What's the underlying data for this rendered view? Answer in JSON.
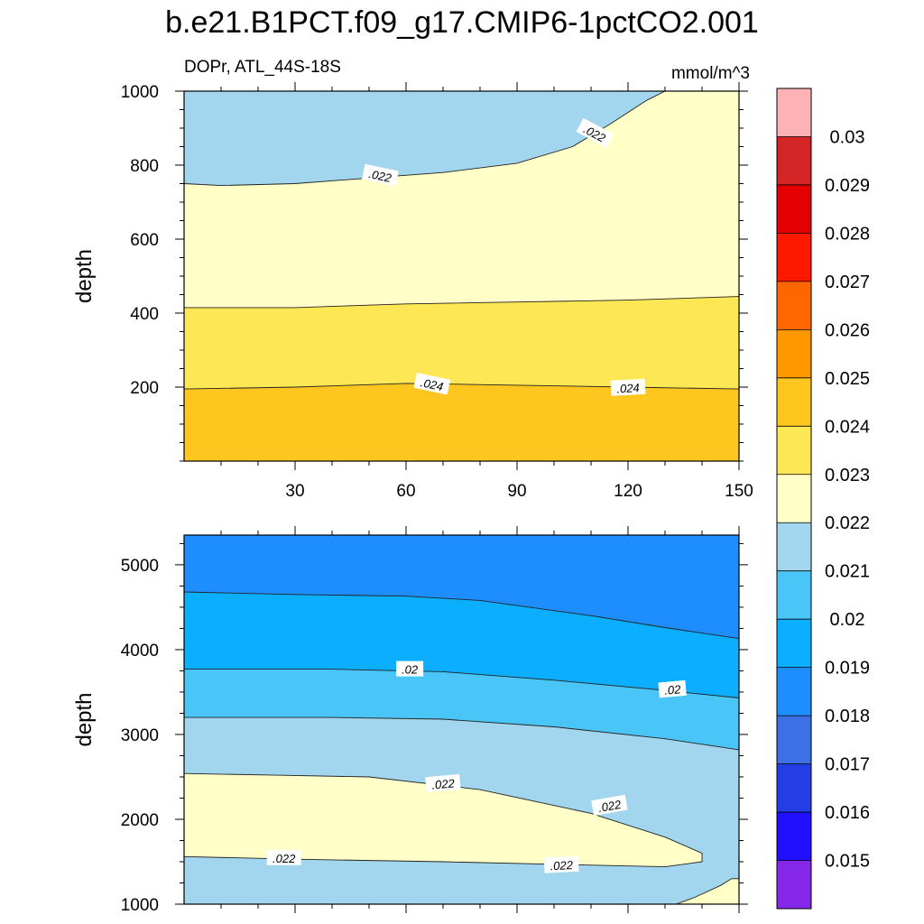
{
  "figure": {
    "title": "b.e21.B1PCT.f09_g17.CMIP6-1pctCO2.001",
    "variable_region": "DOPr, ATL_44S-18S",
    "units": "mmol/m^3"
  },
  "chart_data": [
    {
      "type": "contour",
      "panel": "upper",
      "ylabel": "depth",
      "xlabel": "",
      "xlim": [
        0,
        150
      ],
      "ylim": [
        1000,
        0
      ],
      "x_ticks": [
        30,
        60,
        90,
        120,
        150
      ],
      "y_ticks": [
        200,
        400,
        600,
        800,
        1000
      ],
      "regions": [
        {
          "level": "0.024-0.025",
          "color": "#FEC61F",
          "boundary": [
            [
              0,
              0
            ],
            [
              150,
              0
            ],
            [
              150,
              195
            ],
            [
              120,
              200
            ],
            [
              90,
              205
            ],
            [
              60,
              210
            ],
            [
              30,
              200
            ],
            [
              0,
              195
            ]
          ]
        },
        {
          "level": "0.023-0.024",
          "color": "#FEE755",
          "boundary": [
            [
              0,
              195
            ],
            [
              30,
              200
            ],
            [
              60,
              210
            ],
            [
              90,
              205
            ],
            [
              120,
              200
            ],
            [
              150,
              195
            ],
            [
              150,
              445
            ],
            [
              120,
              435
            ],
            [
              90,
              430
            ],
            [
              60,
              425
            ],
            [
              30,
              415
            ],
            [
              0,
              415
            ]
          ]
        },
        {
          "level": "0.022-0.023",
          "color": "#FFFFC7",
          "boundary": [
            [
              0,
              415
            ],
            [
              30,
              415
            ],
            [
              60,
              425
            ],
            [
              90,
              430
            ],
            [
              120,
              435
            ],
            [
              150,
              445
            ],
            [
              150,
              1000
            ],
            [
              0,
              1000
            ]
          ]
        },
        {
          "level": "0.021-0.022",
          "color": "#A2D6EE",
          "boundary": [
            [
              0,
              750
            ],
            [
              10,
              745
            ],
            [
              30,
              750
            ],
            [
              50,
              765
            ],
            [
              70,
              780
            ],
            [
              90,
              805
            ],
            [
              105,
              850
            ],
            [
              115,
              910
            ],
            [
              125,
              975
            ],
            [
              130,
              1000
            ],
            [
              0,
              1000
            ]
          ]
        }
      ],
      "contour_lines": [
        {
          "value": 0.024,
          "points": [
            [
              0,
              195
            ],
            [
              30,
              200
            ],
            [
              60,
              210
            ],
            [
              90,
              205
            ],
            [
              120,
              200
            ],
            [
              150,
              195
            ]
          ]
        },
        {
          "value": 0.023,
          "points": [
            [
              0,
              415
            ],
            [
              30,
              415
            ],
            [
              60,
              425
            ],
            [
              90,
              430
            ],
            [
              120,
              435
            ],
            [
              150,
              445
            ]
          ]
        },
        {
          "value": 0.022,
          "points": [
            [
              0,
              750
            ],
            [
              10,
              745
            ],
            [
              30,
              750
            ],
            [
              50,
              765
            ],
            [
              70,
              780
            ],
            [
              90,
              805
            ],
            [
              105,
              850
            ],
            [
              115,
              910
            ],
            [
              125,
              975
            ],
            [
              130,
              1000
            ]
          ]
        }
      ],
      "contour_labels": [
        {
          "text": ".024",
          "x": 67,
          "y": 208,
          "angle": 12
        },
        {
          "text": ".024",
          "x": 120,
          "y": 198,
          "angle": -3
        },
        {
          "text": ".022",
          "x": 53,
          "y": 772,
          "angle": 12
        },
        {
          "text": ".022",
          "x": 111,
          "y": 886,
          "angle": 28
        }
      ]
    },
    {
      "type": "contour",
      "panel": "lower",
      "ylabel": "depth",
      "xlabel": "",
      "xlim": [
        0,
        150
      ],
      "ylim": [
        5350,
        1000
      ],
      "x_ticks": [
        30,
        60,
        90,
        120,
        150
      ],
      "y_ticks": [
        1000,
        2000,
        3000,
        4000,
        5000
      ],
      "regions": [
        {
          "level": "0.021-0.022",
          "color": "#A2D6EE",
          "boundary": [
            [
              0,
              1000
            ],
            [
              150,
              1000
            ],
            [
              150,
              5350
            ],
            [
              0,
              5350
            ]
          ]
        },
        {
          "level": "0.022-0.023 (lower-right)",
          "color": "#FFFFC7",
          "boundary": [
            [
              133,
              1000
            ],
            [
              150,
              1000
            ],
            [
              150,
              1300
            ],
            [
              148,
              1300
            ],
            [
              145,
              1220
            ],
            [
              138,
              1080
            ]
          ]
        },
        {
          "level": "0.022-0.023",
          "color": "#FFFFC7",
          "boundary": [
            [
              0,
              1560
            ],
            [
              30,
              1530
            ],
            [
              70,
              1500
            ],
            [
              100,
              1470
            ],
            [
              130,
              1440
            ],
            [
              140,
              1500
            ],
            [
              140,
              1600
            ],
            [
              130,
              1790
            ],
            [
              110,
              2070
            ],
            [
              80,
              2350
            ],
            [
              50,
              2500
            ],
            [
              25,
              2520
            ],
            [
              0,
              2540
            ]
          ]
        },
        {
          "level": "0.020-0.021",
          "color": "#4AC5F8",
          "boundary": [
            [
              0,
              3200
            ],
            [
              40,
              3200
            ],
            [
              70,
              3180
            ],
            [
              100,
              3090
            ],
            [
              130,
              2950
            ],
            [
              150,
              2820
            ],
            [
              150,
              5350
            ],
            [
              0,
              5350
            ]
          ]
        },
        {
          "level": "0.019-0.020",
          "color": "#0CAFFF",
          "boundary": [
            [
              0,
              3770
            ],
            [
              40,
              3770
            ],
            [
              70,
              3740
            ],
            [
              100,
              3640
            ],
            [
              130,
              3520
            ],
            [
              150,
              3430
            ],
            [
              150,
              5350
            ],
            [
              0,
              5350
            ]
          ]
        },
        {
          "level": "0.018-0.019",
          "color": "#1E8EFF",
          "boundary": [
            [
              0,
              4680
            ],
            [
              30,
              4650
            ],
            [
              60,
              4630
            ],
            [
              80,
              4580
            ],
            [
              110,
              4400
            ],
            [
              130,
              4260
            ],
            [
              150,
              4130
            ],
            [
              150,
              5350
            ],
            [
              0,
              5350
            ]
          ]
        }
      ],
      "contour_lines": [
        {
          "value": 0.022,
          "points": [
            [
              0,
              1560
            ],
            [
              30,
              1530
            ],
            [
              70,
              1500
            ],
            [
              100,
              1470
            ],
            [
              130,
              1440
            ],
            [
              140,
              1500
            ],
            [
              140,
              1600
            ],
            [
              130,
              1790
            ],
            [
              110,
              2070
            ],
            [
              80,
              2350
            ],
            [
              50,
              2500
            ],
            [
              25,
              2520
            ],
            [
              0,
              2540
            ]
          ]
        },
        {
          "value": 0.022,
          "points": [
            [
              133,
              1000
            ],
            [
              138,
              1080
            ],
            [
              145,
              1220
            ],
            [
              148,
              1300
            ],
            [
              150,
              1300
            ]
          ]
        },
        {
          "value": 0.021,
          "points": [
            [
              0,
              3200
            ],
            [
              40,
              3200
            ],
            [
              70,
              3180
            ],
            [
              100,
              3090
            ],
            [
              130,
              2950
            ],
            [
              150,
              2820
            ]
          ]
        },
        {
          "value": 0.02,
          "points": [
            [
              0,
              3770
            ],
            [
              40,
              3770
            ],
            [
              70,
              3740
            ],
            [
              100,
              3640
            ],
            [
              130,
              3520
            ],
            [
              150,
              3430
            ]
          ]
        },
        {
          "value": 0.019,
          "points": [
            [
              0,
              4680
            ],
            [
              30,
              4650
            ],
            [
              60,
              4630
            ],
            [
              80,
              4580
            ],
            [
              110,
              4400
            ],
            [
              130,
              4260
            ],
            [
              150,
              4130
            ]
          ]
        }
      ],
      "contour_labels": [
        {
          "text": ".022",
          "x": 27,
          "y": 1545,
          "angle": 0
        },
        {
          "text": ".022",
          "x": 102,
          "y": 1460,
          "angle": -3
        },
        {
          "text": ".022",
          "x": 70,
          "y": 2420,
          "angle": -5
        },
        {
          "text": ".022",
          "x": 115,
          "y": 2160,
          "angle": -10
        },
        {
          "text": ".02",
          "x": 61,
          "y": 3770,
          "angle": 0
        },
        {
          "text": ".02",
          "x": 132,
          "y": 3530,
          "angle": -5
        }
      ]
    }
  ],
  "colorbar": {
    "colors": [
      "#FFB2B6",
      "#D32426",
      "#E40000",
      "#FF1800",
      "#FF6500",
      "#FF9800",
      "#FEC61F",
      "#FEE755",
      "#FFFFC7",
      "#A2D6EE",
      "#4AC5F8",
      "#0CAFFF",
      "#1E8EFF",
      "#3C70E4",
      "#243EE6",
      "#1F11FF",
      "#8427E8"
    ],
    "labels": [
      "0.03",
      "0.029",
      "0.028",
      "0.027",
      "0.026",
      "0.025",
      "0.024",
      "0.023",
      "0.022",
      "0.021",
      "0.02",
      "0.019",
      "0.018",
      "0.017",
      "0.016",
      "0.015"
    ]
  }
}
